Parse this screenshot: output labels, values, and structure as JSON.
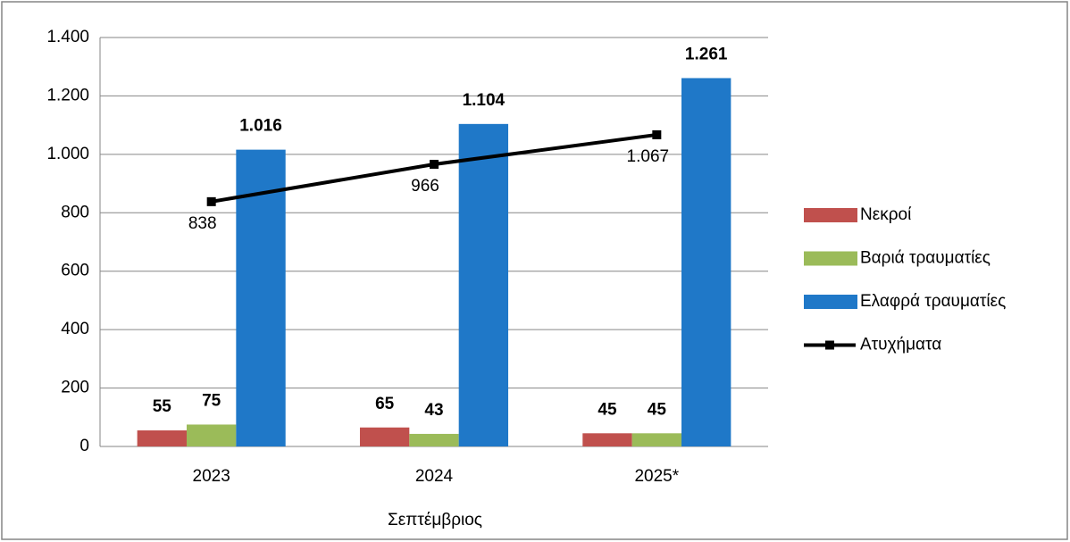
{
  "chart_data": {
    "type": "bar",
    "categories": [
      "2023",
      "2024",
      "2025*"
    ],
    "x_label": "Σεπτέμβριος",
    "series": [
      {
        "name": "Νεκροί",
        "color": "#c0504d",
        "values": [
          55,
          65,
          45
        ]
      },
      {
        "name": "Βαριά τραυματίες",
        "color": "#9bbb59",
        "values": [
          75,
          43,
          45
        ]
      },
      {
        "name": "Ελαφρά τραυματίες",
        "color": "#1f78c8",
        "values": [
          1016,
          1104,
          1261
        ],
        "value_labels": [
          "1.016",
          "1.104",
          "1.261"
        ]
      },
      {
        "name": "Ατυχήματα",
        "type": "line",
        "color": "#000000",
        "values": [
          838,
          966,
          1067
        ],
        "value_labels": [
          "838",
          "966",
          "1.067"
        ]
      }
    ],
    "ylim": [
      0,
      1400
    ],
    "yticks": [
      0,
      200,
      400,
      600,
      800,
      {
        "value": 1000,
        "label": "1.000"
      },
      {
        "value": 1200,
        "label": "1.200"
      },
      {
        "value": 1400,
        "label": "1.400"
      }
    ],
    "grid": true,
    "legend": "right"
  }
}
